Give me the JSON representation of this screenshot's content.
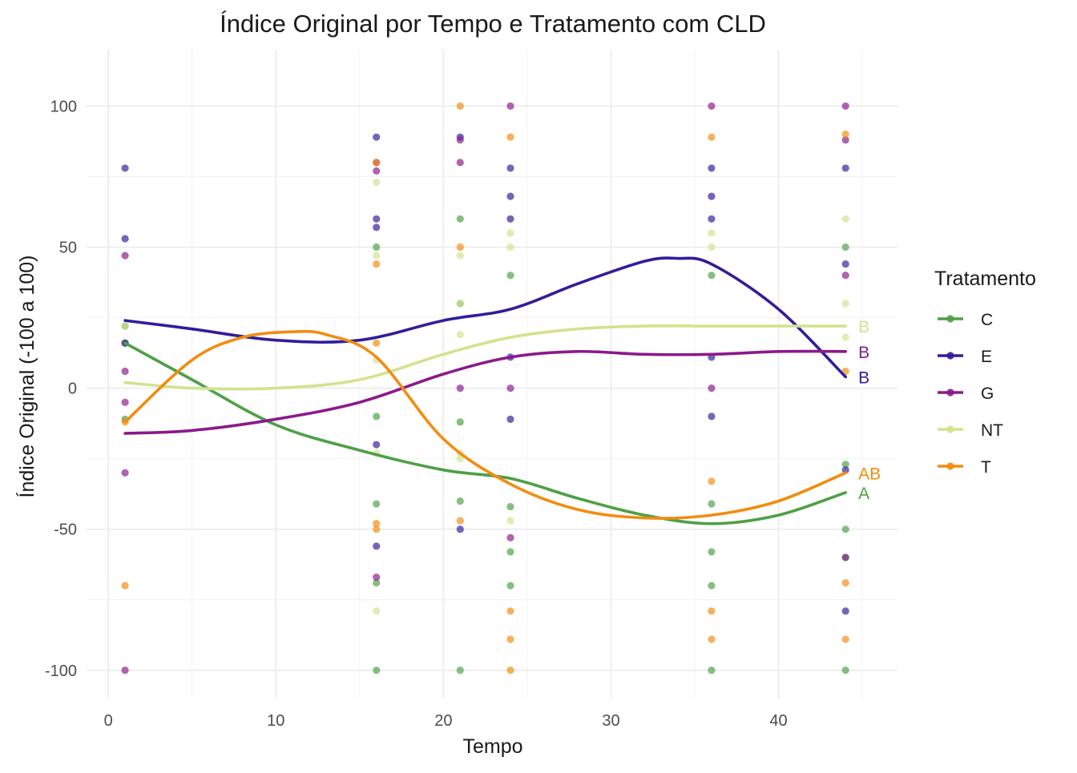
{
  "chart_data": {
    "type": "scatter",
    "title": "Índice Original por Tempo e Tratamento com CLD",
    "xlabel": "Tempo",
    "ylabel": "Índice Original (-100 a 100)",
    "xlim": [
      -1.3,
      47.1
    ],
    "ylim": [
      -110,
      120
    ],
    "x_ticks": [
      0,
      10,
      20,
      30,
      40
    ],
    "x_tick_labels": [
      "0",
      "10",
      "20",
      "30",
      "40"
    ],
    "y_ticks": [
      -100,
      -50,
      0,
      50,
      100
    ],
    "y_tick_labels": [
      "-100",
      "-50",
      "0",
      "50",
      "100"
    ],
    "grid": true,
    "legend": {
      "title": "Tratamento",
      "position": "right"
    },
    "series": [
      {
        "name": "C",
        "color": "#4DA045",
        "cld": "A",
        "points": [
          [
            1,
            22
          ],
          [
            1,
            16
          ],
          [
            1,
            -11
          ],
          [
            16,
            50
          ],
          [
            16,
            -10
          ],
          [
            16,
            -41
          ],
          [
            16,
            -69
          ],
          [
            16,
            -100
          ],
          [
            21,
            60
          ],
          [
            21,
            30
          ],
          [
            21,
            -12
          ],
          [
            21,
            -40
          ],
          [
            21,
            -100
          ],
          [
            24,
            40
          ],
          [
            24,
            -42
          ],
          [
            24,
            -58
          ],
          [
            24,
            -70
          ],
          [
            36,
            40
          ],
          [
            36,
            -41
          ],
          [
            36,
            -58
          ],
          [
            36,
            -70
          ],
          [
            36,
            -100
          ],
          [
            44,
            50
          ],
          [
            44,
            -27
          ],
          [
            44,
            -50
          ],
          [
            44,
            -60
          ],
          [
            44,
            -100
          ]
        ],
        "smooth": [
          [
            1,
            16
          ],
          [
            5,
            3
          ],
          [
            10,
            -13
          ],
          [
            15,
            -22
          ],
          [
            20,
            -29
          ],
          [
            24,
            -32
          ],
          [
            28,
            -39
          ],
          [
            32,
            -45
          ],
          [
            36,
            -48
          ],
          [
            40,
            -45
          ],
          [
            44,
            -37
          ]
        ]
      },
      {
        "name": "E",
        "color": "#2F1F99",
        "cld": "B",
        "points": [
          [
            1,
            78
          ],
          [
            1,
            53
          ],
          [
            1,
            16
          ],
          [
            16,
            89
          ],
          [
            16,
            60
          ],
          [
            16,
            57
          ],
          [
            16,
            -20
          ],
          [
            16,
            -56
          ],
          [
            21,
            89
          ],
          [
            21,
            -50
          ],
          [
            24,
            78
          ],
          [
            24,
            68
          ],
          [
            24,
            60
          ],
          [
            24,
            11
          ],
          [
            24,
            -11
          ],
          [
            36,
            78
          ],
          [
            36,
            68
          ],
          [
            36,
            60
          ],
          [
            36,
            11
          ],
          [
            36,
            -10
          ],
          [
            44,
            78
          ],
          [
            44,
            44
          ],
          [
            44,
            -29
          ],
          [
            44,
            -79
          ]
        ],
        "smooth": [
          [
            1,
            24
          ],
          [
            5,
            21
          ],
          [
            10,
            17
          ],
          [
            15,
            17
          ],
          [
            20,
            24
          ],
          [
            24,
            28
          ],
          [
            28,
            37
          ],
          [
            32,
            45
          ],
          [
            34,
            46
          ],
          [
            36,
            44
          ],
          [
            40,
            28
          ],
          [
            44,
            4
          ]
        ]
      },
      {
        "name": "G",
        "color": "#8B1A8B",
        "cld": "B",
        "points": [
          [
            1,
            47
          ],
          [
            1,
            6
          ],
          [
            1,
            -5
          ],
          [
            1,
            -30
          ],
          [
            1,
            -100
          ],
          [
            16,
            80
          ],
          [
            16,
            77
          ],
          [
            16,
            -67
          ],
          [
            21,
            88
          ],
          [
            21,
            80
          ],
          [
            21,
            0
          ],
          [
            24,
            100
          ],
          [
            24,
            0
          ],
          [
            24,
            -53
          ],
          [
            36,
            100
          ],
          [
            36,
            0
          ],
          [
            44,
            100
          ],
          [
            44,
            88
          ],
          [
            44,
            40
          ],
          [
            44,
            -60
          ]
        ],
        "smooth": [
          [
            1,
            -16
          ],
          [
            5,
            -15
          ],
          [
            10,
            -11
          ],
          [
            15,
            -5
          ],
          [
            20,
            5
          ],
          [
            24,
            11
          ],
          [
            28,
            13
          ],
          [
            32,
            12
          ],
          [
            36,
            12
          ],
          [
            40,
            13
          ],
          [
            44,
            13
          ]
        ]
      },
      {
        "name": "NT",
        "color": "#D1E38E",
        "cld": "B",
        "points": [
          [
            1,
            22
          ],
          [
            16,
            73
          ],
          [
            16,
            47
          ],
          [
            16,
            10
          ],
          [
            16,
            -23
          ],
          [
            16,
            -79
          ],
          [
            21,
            47
          ],
          [
            21,
            30
          ],
          [
            21,
            19
          ],
          [
            21,
            -23
          ],
          [
            21,
            -25
          ],
          [
            24,
            55
          ],
          [
            24,
            50
          ],
          [
            24,
            -47
          ],
          [
            36,
            55
          ],
          [
            36,
            50
          ],
          [
            44,
            60
          ],
          [
            44,
            30
          ],
          [
            44,
            18
          ]
        ],
        "smooth": [
          [
            1,
            2
          ],
          [
            5,
            0
          ],
          [
            10,
            0
          ],
          [
            15,
            3
          ],
          [
            20,
            12
          ],
          [
            24,
            18
          ],
          [
            28,
            21
          ],
          [
            32,
            22
          ],
          [
            36,
            22
          ],
          [
            40,
            22
          ],
          [
            44,
            22
          ]
        ]
      },
      {
        "name": "T",
        "color": "#F28C0F",
        "cld": "AB",
        "points": [
          [
            1,
            -12
          ],
          [
            1,
            -70
          ],
          [
            16,
            80
          ],
          [
            16,
            44
          ],
          [
            16,
            16
          ],
          [
            16,
            -48
          ],
          [
            16,
            -50
          ],
          [
            21,
            100
          ],
          [
            21,
            50
          ],
          [
            21,
            -47
          ],
          [
            24,
            89
          ],
          [
            24,
            -79
          ],
          [
            24,
            -89
          ],
          [
            24,
            -100
          ],
          [
            36,
            89
          ],
          [
            36,
            -33
          ],
          [
            36,
            -79
          ],
          [
            36,
            -89
          ],
          [
            44,
            90
          ],
          [
            44,
            6
          ],
          [
            44,
            -69
          ],
          [
            44,
            -89
          ]
        ],
        "smooth": [
          [
            1,
            -12
          ],
          [
            5,
            10
          ],
          [
            8,
            18
          ],
          [
            11,
            20
          ],
          [
            13,
            19
          ],
          [
            16,
            11
          ],
          [
            20,
            -18
          ],
          [
            24,
            -34
          ],
          [
            28,
            -43
          ],
          [
            32,
            -46
          ],
          [
            36,
            -45
          ],
          [
            40,
            -40
          ],
          [
            44,
            -30
          ]
        ]
      }
    ]
  }
}
